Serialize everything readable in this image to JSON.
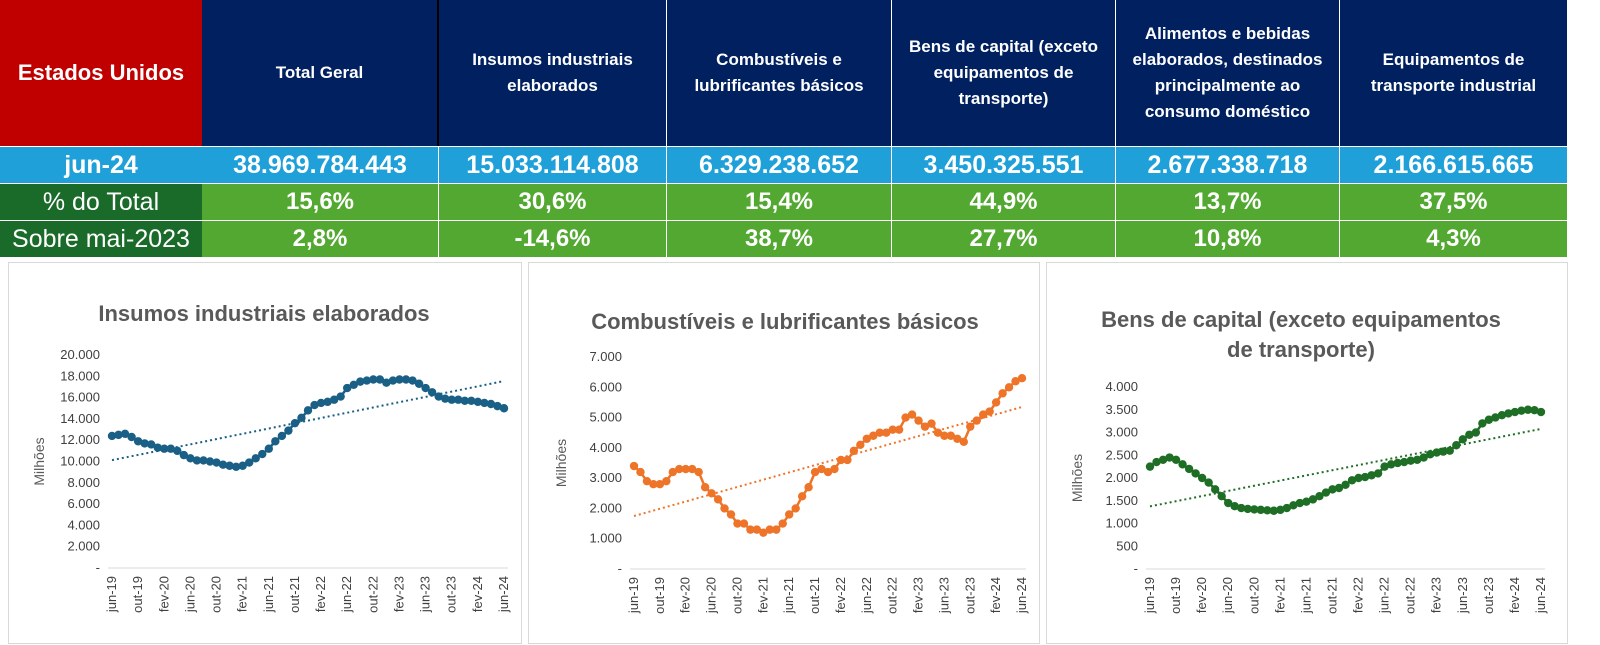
{
  "table": {
    "corner_label": "Estados Unidos",
    "headers": [
      "Total Geral",
      "Insumos industriais elaborados",
      "Combustíveis e lubrificantes básicos",
      "Bens de capital (exceto equipamentos de transporte)",
      "Alimentos e bebidas elaborados, destinados principalmente ao consumo doméstico",
      "Equipamentos de transporte industrial"
    ],
    "rows": [
      {
        "label": "jun-24",
        "values": [
          "38.969.784.443",
          "15.033.114.808",
          "6.329.238.652",
          "3.450.325.551",
          "2.677.338.718",
          "2.166.615.665"
        ]
      },
      {
        "label": "% do Total",
        "values": [
          "15,6%",
          "30,6%",
          "15,4%",
          "44,9%",
          "13,7%",
          "37,5%"
        ]
      },
      {
        "label": "Sobre mai-2023",
        "values": [
          "2,8%",
          "-14,6%",
          "38,7%",
          "27,7%",
          "10,8%",
          "4,3%"
        ]
      }
    ],
    "colors": {
      "corner": "#c00000",
      "header": "#002060",
      "value_row": "#1fa0d9",
      "label_dark": "#1a6b2a",
      "pct_row": "#52a830"
    }
  },
  "chart_data": [
    {
      "type": "line",
      "title": "Insumos industriais elaborados",
      "ylabel": "Milhões",
      "color": "#1a5f85",
      "trendline": true,
      "ylim": [
        0,
        20000
      ],
      "yticks": [
        0,
        2000,
        4000,
        6000,
        8000,
        10000,
        12000,
        14000,
        16000,
        18000,
        20000
      ],
      "ytick_labels": [
        "-",
        "2.000",
        "4.000",
        "6.000",
        "8.000",
        "10.000",
        "12.000",
        "14.000",
        "16.000",
        "18.000",
        "20.000"
      ],
      "x_labels": [
        "jun-19",
        "out-19",
        "fev-20",
        "jun-20",
        "out-20",
        "fev-21",
        "jun-21",
        "out-21",
        "fev-22",
        "jun-22",
        "out-22",
        "fev-23",
        "jun-23",
        "out-23",
        "fev-24",
        "jun-24"
      ],
      "values": [
        12400,
        12500,
        12600,
        12300,
        11900,
        11700,
        11600,
        11300,
        11200,
        11200,
        11000,
        10600,
        10300,
        10100,
        10100,
        10000,
        9900,
        9700,
        9600,
        9500,
        9600,
        9900,
        10300,
        10700,
        11200,
        11900,
        12400,
        12900,
        13600,
        14100,
        14800,
        15300,
        15500,
        15600,
        15800,
        16100,
        16900,
        17200,
        17500,
        17600,
        17700,
        17700,
        17400,
        17600,
        17700,
        17700,
        17600,
        17300,
        16900,
        16500,
        16100,
        15900,
        15800,
        15800,
        15700,
        15700,
        15600,
        15500,
        15400,
        15200,
        15000
      ]
    },
    {
      "type": "line",
      "title": "Combustíveis e lubrificantes básicos",
      "ylabel": "Milhões",
      "color": "#ed7428",
      "trendline": true,
      "ylim": [
        0,
        7000
      ],
      "yticks": [
        0,
        1000,
        2000,
        3000,
        4000,
        5000,
        6000,
        7000
      ],
      "ytick_labels": [
        "-",
        "1.000",
        "2.000",
        "3.000",
        "4.000",
        "5.000",
        "6.000",
        "7.000"
      ],
      "x_labels": [
        "jun-19",
        "out-19",
        "fev-20",
        "jun-20",
        "out-20",
        "fev-21",
        "jun-21",
        "out-21",
        "fev-22",
        "jun-22",
        "out-22",
        "fev-23",
        "jun-23",
        "out-23",
        "fev-24",
        "jun-24"
      ],
      "values": [
        3400,
        3200,
        2900,
        2800,
        2800,
        2900,
        3200,
        3300,
        3300,
        3300,
        3200,
        2700,
        2500,
        2300,
        2000,
        1800,
        1500,
        1500,
        1300,
        1300,
        1200,
        1300,
        1300,
        1500,
        1800,
        2000,
        2400,
        2700,
        3200,
        3300,
        3200,
        3300,
        3600,
        3600,
        3900,
        4100,
        4300,
        4400,
        4500,
        4500,
        4600,
        4600,
        5000,
        5100,
        4900,
        4700,
        4800,
        4500,
        4400,
        4400,
        4300,
        4200,
        4700,
        4900,
        5100,
        5200,
        5500,
        5800,
        6000,
        6200,
        6300
      ]
    },
    {
      "type": "line",
      "title": "Bens de capital (exceto equipamentos de transporte)",
      "ylabel": "Milhões",
      "color": "#1e6e25",
      "trendline": true,
      "ylim": [
        0,
        4000
      ],
      "yticks": [
        0,
        500,
        1000,
        1500,
        2000,
        2500,
        3000,
        3500,
        4000
      ],
      "ytick_labels": [
        "-",
        "500",
        "1.000",
        "1.500",
        "2.000",
        "2.500",
        "3.000",
        "3.500",
        "4.000"
      ],
      "x_labels": [
        "jun-19",
        "out-19",
        "fev-20",
        "jun-20",
        "out-20",
        "fev-21",
        "jun-21",
        "out-21",
        "fev-22",
        "jun-22",
        "out-22",
        "fev-23",
        "jun-23",
        "out-23",
        "fev-24",
        "jun-24"
      ],
      "values": [
        2250,
        2350,
        2400,
        2450,
        2400,
        2300,
        2200,
        2100,
        2000,
        1900,
        1750,
        1600,
        1450,
        1380,
        1340,
        1320,
        1310,
        1300,
        1290,
        1280,
        1300,
        1340,
        1400,
        1450,
        1480,
        1530,
        1600,
        1680,
        1750,
        1780,
        1850,
        1950,
        2000,
        2020,
        2060,
        2100,
        2250,
        2300,
        2330,
        2350,
        2380,
        2400,
        2450,
        2520,
        2560,
        2580,
        2600,
        2720,
        2850,
        2950,
        3000,
        3200,
        3280,
        3330,
        3380,
        3420,
        3450,
        3480,
        3500,
        3490,
        3450
      ]
    }
  ]
}
